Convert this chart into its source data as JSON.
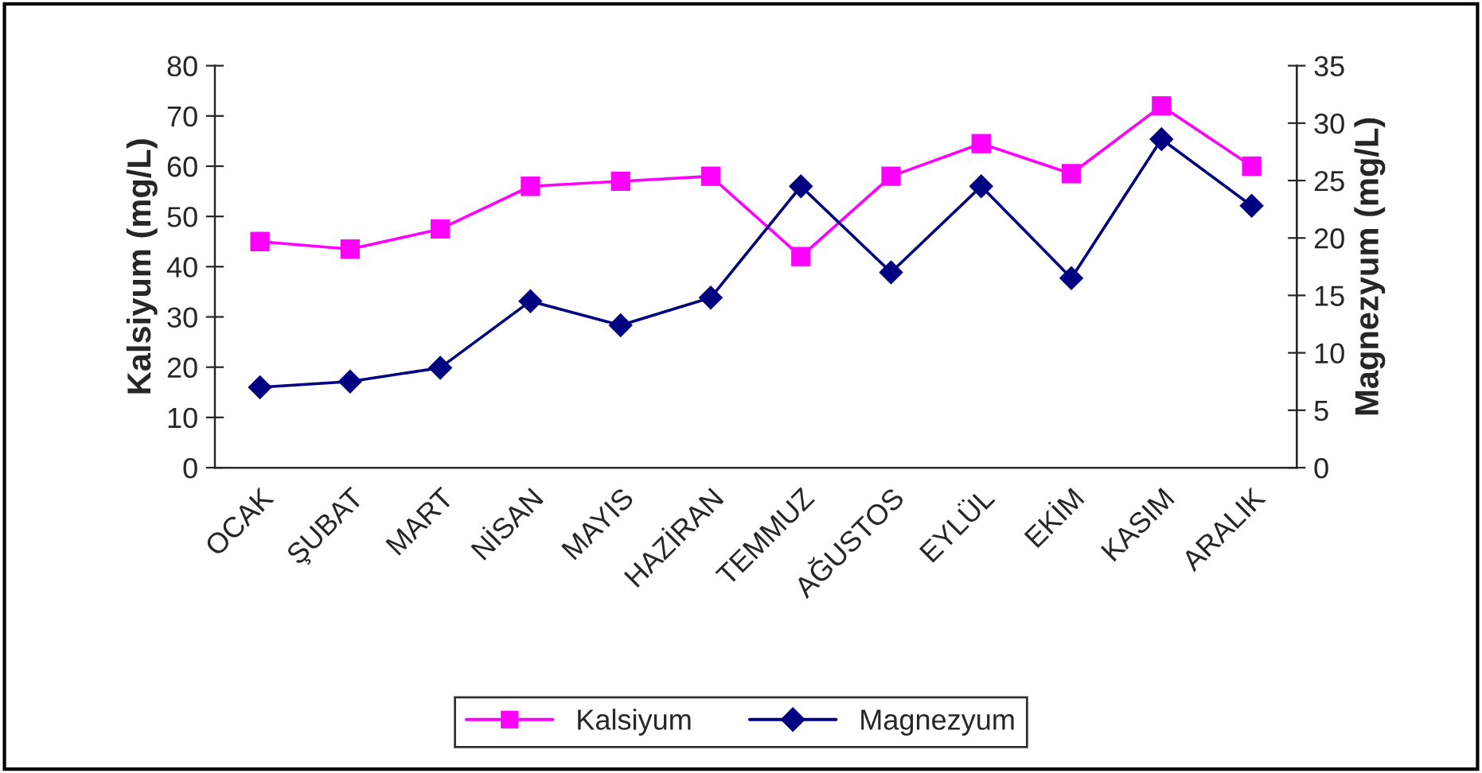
{
  "chart_data": {
    "type": "line",
    "categories": [
      "OCAK",
      "ŞUBAT",
      "MART",
      "NİSAN",
      "MAYIS",
      "HAZİRAN",
      "TEMMUZ",
      "AĞUSTOS",
      "EYLÜL",
      "EKİM",
      "KASIM",
      "ARALIK"
    ],
    "ylabel": "Kalsiyum (mg/L)",
    "y2label": "Magnezyum (mg/L)",
    "ylim": [
      0,
      80
    ],
    "yticks": [
      0,
      10,
      20,
      30,
      40,
      50,
      60,
      70,
      80
    ],
    "y2lim": [
      0,
      35
    ],
    "y2ticks": [
      0,
      5,
      10,
      15,
      20,
      25,
      30,
      35
    ],
    "series": [
      {
        "name": "Kalsiyum",
        "color": "#ff00ff",
        "marker": "square",
        "values": [
          45,
          43.5,
          47.5,
          56,
          57,
          58,
          42,
          58,
          64.5,
          58.5,
          72,
          60
        ]
      },
      {
        "name": "Magnezyum",
        "color": "#000080",
        "marker": "diamond",
        "axis": "y2",
        "values": [
          7,
          7.5,
          8.7,
          14.5,
          12.4,
          14.8,
          24.5,
          17,
          24.5,
          16.5,
          28.6,
          22.8
        ]
      }
    ],
    "grid": false,
    "legend": "bottom"
  }
}
